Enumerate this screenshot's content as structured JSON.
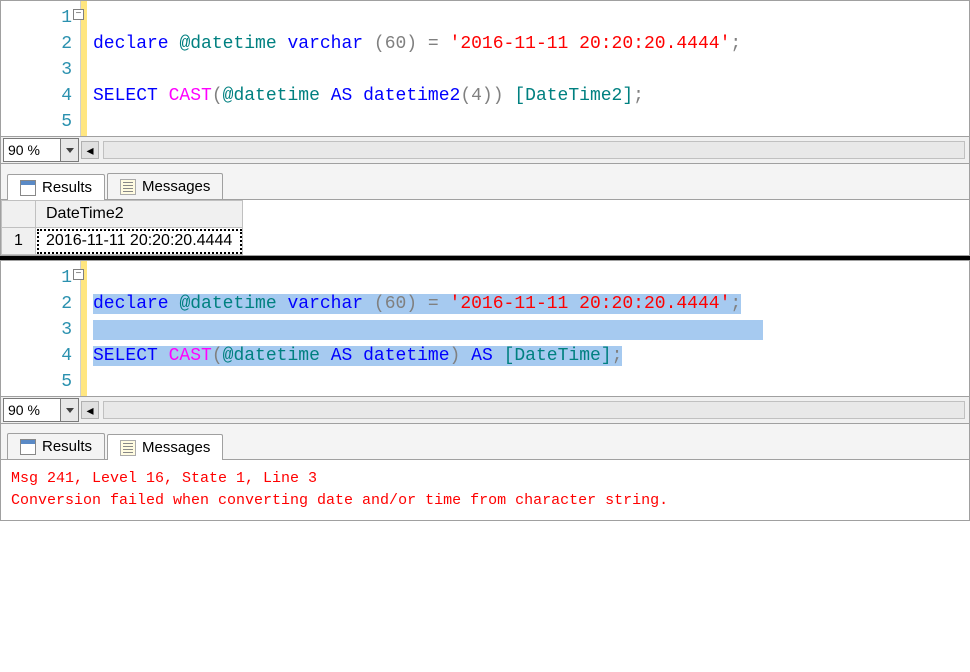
{
  "zoom": "90 %",
  "tabs": {
    "results": "Results",
    "messages": "Messages"
  },
  "pane1": {
    "lines": [
      "1",
      "2",
      "3",
      "4",
      "5"
    ],
    "code": {
      "l1": {
        "declare": "declare",
        "var": "@datetime",
        "varchar": "varchar",
        "paren": " (60) ",
        "eq": "=",
        "str": "'2016-11-11 20:20:20.4444'",
        "semi": ";"
      },
      "l3": {
        "select": "SELECT",
        "cast": "CAST",
        "open": "(",
        "var": "@datetime",
        "as": "AS",
        "type": "datetime2",
        "args": "(4)) ",
        "alias": "[DateTime2]",
        "semi": ";"
      }
    },
    "results": {
      "col": "DateTime2",
      "rownum": "1",
      "val": "2016-11-11 20:20:20.4444"
    }
  },
  "pane2": {
    "lines": [
      "1",
      "2",
      "3",
      "4",
      "5"
    ],
    "code": {
      "l1": {
        "declare": "declare",
        "var": "@datetime",
        "varchar": "varchar",
        "paren": " (60) ",
        "eq": "=",
        "str": "'2016-11-11 20:20:20.4444'",
        "semi": ";"
      },
      "l3": {
        "select": "SELECT",
        "cast": "CAST",
        "open": "(",
        "var": "@datetime",
        "as1": "AS",
        "type": "datetime",
        "close": ")",
        "as2": "AS",
        "alias": "[DateTime]",
        "semi": ";"
      }
    },
    "message": {
      "l1": "Msg 241, Level 16, State 1, Line 3",
      "l2": "Conversion failed when converting date and/or time from character string."
    }
  }
}
